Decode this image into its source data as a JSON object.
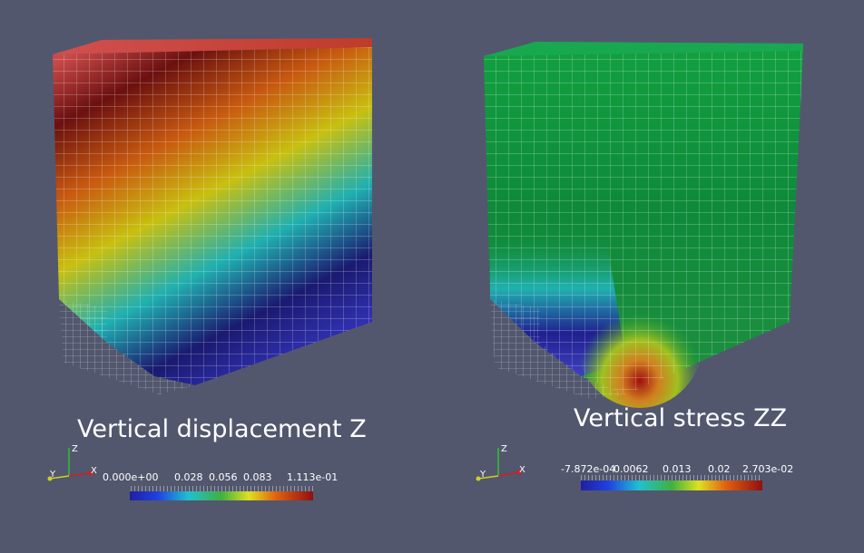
{
  "panels": [
    {
      "title": "Vertical displacement Z",
      "colorbar": {
        "labels": [
          "0.000e+00",
          "0.028",
          "0.056",
          "0.083",
          "1.113e-01"
        ]
      },
      "axes": {
        "x": "X",
        "y": "Y",
        "z": "Z"
      }
    },
    {
      "title": "Vertical stress ZZ",
      "colorbar": {
        "labels": [
          "-7.872e-04",
          "0.0062",
          "0.013",
          "0.02",
          "2.703e-02"
        ]
      },
      "axes": {
        "x": "X",
        "y": "Y",
        "z": "Z"
      }
    }
  ]
}
